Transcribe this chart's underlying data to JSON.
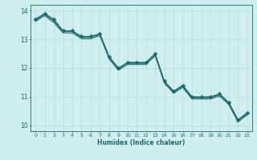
{
  "title": "",
  "xlabel": "Humidex (Indice chaleur)",
  "xlim": [
    -0.5,
    23.5
  ],
  "ylim": [
    9.8,
    14.2
  ],
  "yticks": [
    10,
    11,
    12,
    13,
    14
  ],
  "xticks": [
    0,
    1,
    2,
    3,
    4,
    5,
    6,
    7,
    8,
    9,
    10,
    11,
    12,
    13,
    14,
    15,
    16,
    17,
    18,
    19,
    20,
    21,
    22,
    23
  ],
  "background_color": "#d0eef0",
  "line_color": "#1a6b6b",
  "grid_color": "#b0d8d0",
  "lines": [
    [
      13.7,
      13.9,
      13.7,
      13.3,
      13.3,
      13.1,
      13.1,
      13.2,
      12.4,
      12.0,
      12.2,
      12.2,
      12.2,
      12.5,
      11.55,
      11.2,
      11.4,
      11.0,
      11.0,
      11.0,
      11.1,
      10.8,
      10.2,
      10.45
    ],
    [
      13.65,
      13.88,
      13.65,
      13.28,
      13.28,
      13.08,
      13.08,
      13.18,
      12.38,
      11.98,
      12.18,
      12.18,
      12.18,
      12.48,
      11.53,
      11.18,
      11.38,
      10.98,
      10.98,
      10.98,
      11.08,
      10.78,
      10.18,
      10.43
    ],
    [
      13.68,
      13.86,
      13.63,
      13.26,
      13.26,
      13.06,
      13.06,
      13.16,
      12.36,
      11.96,
      12.16,
      12.16,
      12.16,
      12.46,
      11.51,
      11.16,
      11.36,
      10.96,
      10.96,
      10.96,
      11.06,
      10.76,
      10.16,
      10.41
    ],
    [
      13.62,
      13.82,
      13.58,
      13.22,
      13.22,
      13.02,
      13.02,
      13.12,
      12.32,
      11.92,
      12.12,
      12.12,
      12.12,
      12.42,
      11.47,
      11.12,
      11.32,
      10.92,
      10.92,
      10.92,
      11.02,
      10.72,
      10.12,
      10.37
    ]
  ],
  "marker_idx": 0,
  "marker_size": 2.5,
  "linewidth": 0.7,
  "xlabel_fontsize": 5.5,
  "xlabel_fontweight": "bold",
  "xtick_fontsize": 4.5,
  "ytick_fontsize": 5.5
}
